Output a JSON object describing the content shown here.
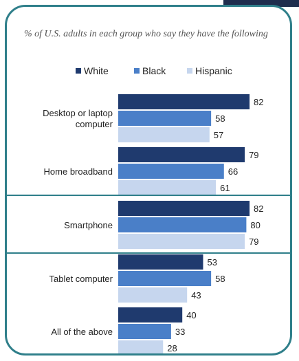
{
  "colors": {
    "white": "#1f3a6e",
    "black": "#4a7fc8",
    "hispanic": "#c6d6ee",
    "border": "#2f7f8a",
    "navy": "#1f2d4d"
  },
  "chart_data": {
    "type": "bar",
    "orientation": "horizontal",
    "subtitle": "% of U.S. adults in each group who say they have the following",
    "categories": [
      [
        "Desktop or laptop",
        "computer"
      ],
      [
        "Home broadband"
      ],
      [
        "Smartphone"
      ],
      [
        "Tablet computer"
      ],
      [
        "All of the above"
      ]
    ],
    "series": [
      {
        "name": "White",
        "values": [
          82,
          79,
          82,
          53,
          40
        ]
      },
      {
        "name": "Black",
        "values": [
          58,
          66,
          80,
          58,
          33
        ]
      },
      {
        "name": "Hispanic",
        "values": [
          57,
          61,
          79,
          43,
          28
        ]
      }
    ],
    "highlighted_category": "Smartphone",
    "xlim": [
      0,
      100
    ],
    "legend_position": "top",
    "grid": false
  }
}
